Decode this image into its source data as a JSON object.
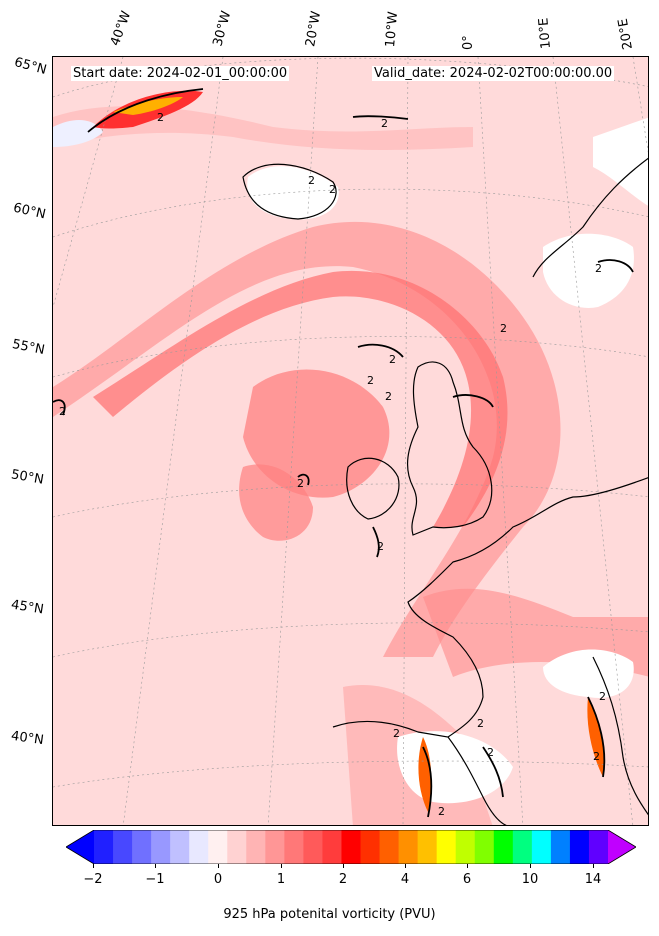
{
  "header": {
    "start_date": "Start date: 2024-02-01_00:00:00",
    "valid_date": "Valid_date: 2024-02-02T00:00:00.00"
  },
  "longitude_labels": [
    "40°W",
    "30°W",
    "20°W",
    "10°W",
    "0°",
    "10°E",
    "20°E"
  ],
  "latitude_labels": [
    "65°N",
    "60°N",
    "55°N",
    "50°N",
    "45°N",
    "40°N"
  ],
  "contour_labels": [
    "2",
    "2",
    "2",
    "2",
    "2",
    "2",
    "2",
    "2",
    "2",
    "2",
    "2",
    "2",
    "2",
    "2",
    "2",
    "2",
    "2",
    "2"
  ],
  "colorbar": {
    "title": "925 hPa potenital vorticity (PVU)",
    "tick_labels": [
      "−2",
      "−1",
      "0",
      "1",
      "2",
      "4",
      "6",
      "10",
      "14"
    ],
    "colors": [
      "#0000ff",
      "#2020ff",
      "#4848ff",
      "#7070ff",
      "#9898ff",
      "#c0c0ff",
      "#e8e8ff",
      "#fff0f0",
      "#ffd2d2",
      "#ffb4b4",
      "#ff9696",
      "#ff7878",
      "#ff5a5a",
      "#ff3c3c",
      "#ff0000",
      "#ff3000",
      "#ff6000",
      "#ff9000",
      "#ffc000",
      "#ffff00",
      "#c0ff00",
      "#80ff00",
      "#00ff00",
      "#00ff80",
      "#00ffff",
      "#0080ff",
      "#0000ff",
      "#6000ff",
      "#c000ff"
    ]
  }
}
